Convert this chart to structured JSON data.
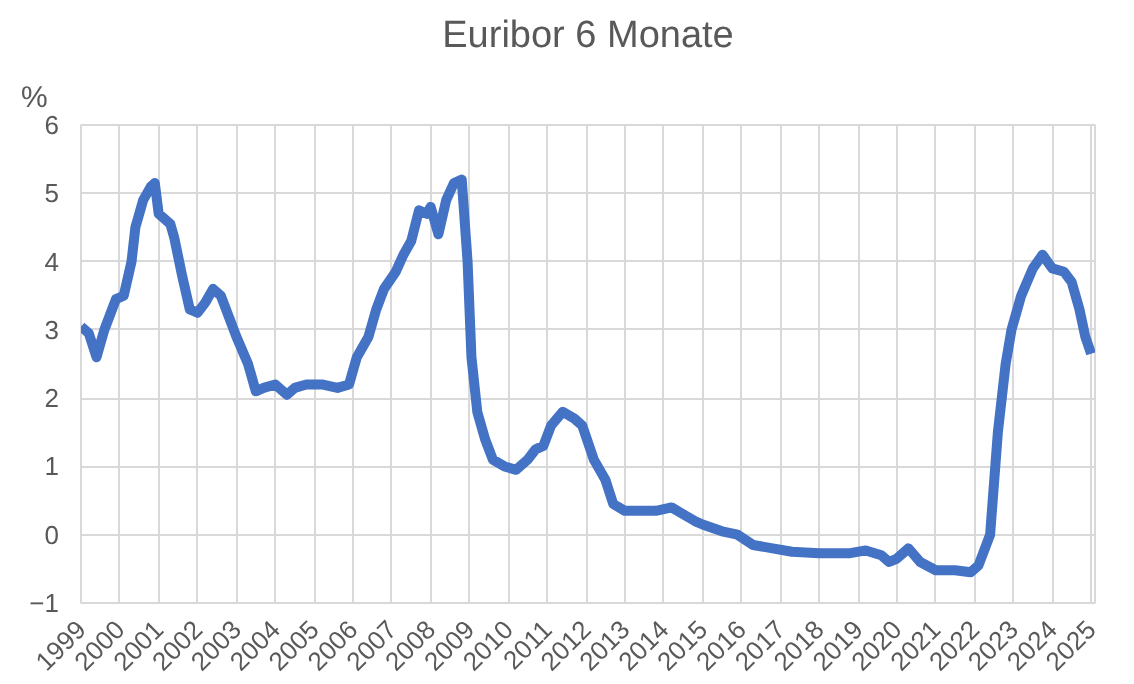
{
  "chart_data": {
    "type": "line",
    "title": "Euribor 6 Monate",
    "ylabel": "%",
    "x": [
      1999.0,
      1999.2,
      1999.4,
      1999.6,
      1999.9,
      2000.1,
      2000.3,
      2000.4,
      2000.6,
      2000.8,
      2000.9,
      2001.0,
      2001.3,
      2001.4,
      2001.6,
      2001.8,
      2002.0,
      2002.2,
      2002.4,
      2002.6,
      2002.8,
      2003.0,
      2003.3,
      2003.5,
      2003.7,
      2004.0,
      2004.3,
      2004.5,
      2004.8,
      2005.2,
      2005.6,
      2005.9,
      2006.1,
      2006.4,
      2006.6,
      2006.8,
      2007.1,
      2007.3,
      2007.5,
      2007.7,
      2007.9,
      2008.0,
      2008.2,
      2008.4,
      2008.6,
      2008.8,
      2008.95,
      2009.05,
      2009.2,
      2009.4,
      2009.6,
      2009.9,
      2010.2,
      2010.5,
      2010.7,
      2010.9,
      2011.1,
      2011.4,
      2011.7,
      2011.9,
      2012.2,
      2012.5,
      2012.7,
      2013.0,
      2013.4,
      2013.8,
      2014.2,
      2014.5,
      2014.8,
      2015.0,
      2015.5,
      2015.9,
      2016.3,
      2016.8,
      2017.3,
      2018.0,
      2018.8,
      2019.2,
      2019.6,
      2019.8,
      2020.0,
      2020.3,
      2020.6,
      2021.0,
      2021.5,
      2021.9,
      2022.1,
      2022.4,
      2022.6,
      2022.8,
      2022.95,
      2023.2,
      2023.5,
      2023.75,
      2024.0,
      2024.3,
      2024.5,
      2024.7,
      2024.85,
      2025.0
    ],
    "series": [
      {
        "color": "#4472c4",
        "values": [
          3.05,
          2.95,
          2.6,
          3.0,
          3.45,
          3.5,
          4.0,
          4.5,
          4.9,
          5.1,
          5.15,
          4.7,
          4.55,
          4.35,
          3.8,
          3.3,
          3.25,
          3.4,
          3.6,
          3.5,
          3.2,
          2.9,
          2.5,
          2.1,
          2.15,
          2.2,
          2.05,
          2.15,
          2.2,
          2.2,
          2.15,
          2.2,
          2.6,
          2.9,
          3.3,
          3.6,
          3.85,
          4.1,
          4.3,
          4.75,
          4.7,
          4.8,
          4.4,
          4.9,
          5.15,
          5.2,
          4.0,
          2.6,
          1.8,
          1.4,
          1.1,
          1.0,
          0.95,
          1.1,
          1.25,
          1.3,
          1.6,
          1.8,
          1.7,
          1.6,
          1.1,
          0.8,
          0.45,
          0.35,
          0.35,
          0.35,
          0.4,
          0.3,
          0.2,
          0.15,
          0.05,
          0.0,
          -0.15,
          -0.2,
          -0.25,
          -0.27,
          -0.27,
          -0.23,
          -0.3,
          -0.4,
          -0.35,
          -0.2,
          -0.4,
          -0.52,
          -0.52,
          -0.55,
          -0.45,
          0.0,
          1.5,
          2.5,
          3.0,
          3.5,
          3.9,
          4.1,
          3.9,
          3.85,
          3.7,
          3.3,
          2.9,
          2.65
        ]
      }
    ],
    "xlim": [
      1999,
      2025.1
    ],
    "xticks": [
      1999,
      2000,
      2001,
      2002,
      2003,
      2004,
      2005,
      2006,
      2007,
      2008,
      2009,
      2010,
      2011,
      2012,
      2013,
      2014,
      2015,
      2016,
      2017,
      2018,
      2019,
      2020,
      2021,
      2022,
      2023,
      2024,
      2025
    ],
    "ylim": [
      -1,
      6
    ],
    "yticks": [
      -1,
      0,
      1,
      2,
      3,
      4,
      5,
      6
    ],
    "grid": true
  }
}
